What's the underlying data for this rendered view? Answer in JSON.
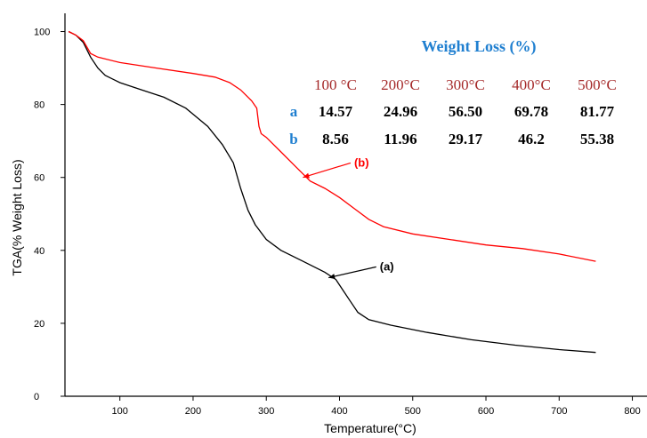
{
  "chart_data": {
    "type": "line",
    "xlabel": "Temperature(°C)",
    "ylabel": "TGA(% Weight Loss)",
    "xlim": [
      25,
      820
    ],
    "ylim": [
      0,
      105
    ],
    "x_ticks": [
      100,
      200,
      300,
      400,
      500,
      600,
      700,
      800
    ],
    "y_ticks": [
      0,
      20,
      40,
      60,
      80,
      100
    ],
    "series": [
      {
        "name": "(a)",
        "color": "#000000",
        "x": [
          30,
          40,
          50,
          60,
          70,
          80,
          100,
          130,
          160,
          190,
          220,
          240,
          255,
          265,
          275,
          285,
          300,
          320,
          350,
          380,
          395,
          405,
          415,
          425,
          440,
          470,
          520,
          580,
          640,
          700,
          750
        ],
        "y": [
          100,
          99,
          97,
          93,
          90,
          88,
          86,
          84,
          82,
          79,
          74,
          69,
          64,
          57,
          51,
          47,
          43,
          40,
          37,
          34,
          32,
          29,
          26,
          23,
          21,
          19.5,
          17.5,
          15.5,
          14,
          12.8,
          12
        ]
      },
      {
        "name": "(b)",
        "color": "#ff0000",
        "x": [
          30,
          40,
          50,
          60,
          70,
          100,
          150,
          200,
          230,
          250,
          265,
          280,
          287,
          290,
          293,
          300,
          320,
          340,
          360,
          380,
          400,
          420,
          440,
          460,
          500,
          550,
          600,
          650,
          700,
          750
        ],
        "y": [
          100,
          99,
          97.5,
          94,
          93,
          91.5,
          90,
          88.5,
          87.5,
          86,
          84,
          81,
          79,
          74,
          72,
          71,
          67,
          63,
          59,
          57,
          54.5,
          51.5,
          48.5,
          46.5,
          44.5,
          43,
          41.5,
          40.5,
          39,
          37
        ]
      }
    ],
    "annotations": [
      {
        "text": "(a)",
        "color": "#000000",
        "arrow_to": [
          385,
          32.5
        ],
        "text_at": [
          455,
          34.5
        ]
      },
      {
        "text": "(b)",
        "color": "#ff0000",
        "arrow_to": [
          350,
          60
        ],
        "text_at": [
          420,
          63
        ]
      }
    ],
    "table": {
      "title": "Weight Loss (%)",
      "headers": [
        "100 °C",
        "200°C",
        "300°C",
        "400°C",
        "500°C"
      ],
      "rows": [
        {
          "label": "a",
          "values": [
            "14.57",
            "24.96",
            "56.50",
            "69.78",
            "81.77"
          ]
        },
        {
          "label": "b",
          "values": [
            "8.56",
            "11.96",
            "29.17",
            "46.2",
            "55.38"
          ]
        }
      ]
    }
  }
}
